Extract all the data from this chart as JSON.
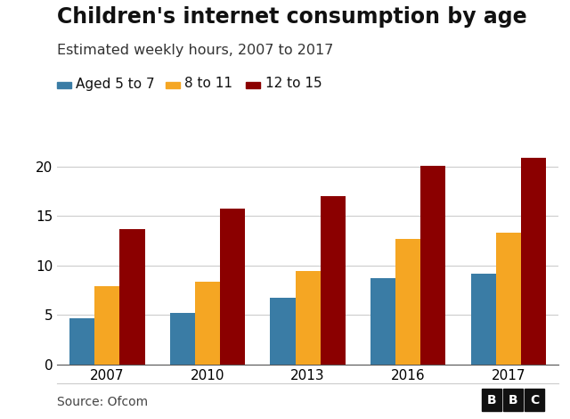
{
  "title": "Children's internet consumption by age",
  "subtitle": "Estimated weekly hours, 2007 to 2017",
  "years": [
    "2007",
    "2010",
    "2013",
    "2016",
    "2017"
  ],
  "series": {
    "aged_5_7": [
      4.7,
      5.2,
      6.7,
      8.7,
      9.2
    ],
    "aged_8_11": [
      7.9,
      8.4,
      9.4,
      12.7,
      13.3
    ],
    "aged_12_15": [
      13.7,
      15.7,
      17.0,
      20.1,
      20.9
    ]
  },
  "colors": {
    "aged_5_7": "#3a7ca5",
    "aged_8_11": "#f5a623",
    "aged_12_15": "#8b0000"
  },
  "legend_labels": [
    "Aged 5 to 7",
    "8 to 11",
    "12 to 15"
  ],
  "ylim": [
    0,
    22
  ],
  "yticks": [
    0,
    5,
    10,
    15,
    20
  ],
  "source_text": "Source: Ofcom",
  "bbc_text": "BBC",
  "background_color": "#ffffff",
  "bar_width": 0.25,
  "title_fontsize": 17,
  "subtitle_fontsize": 11.5,
  "axis_fontsize": 11,
  "legend_fontsize": 11,
  "source_fontsize": 10
}
